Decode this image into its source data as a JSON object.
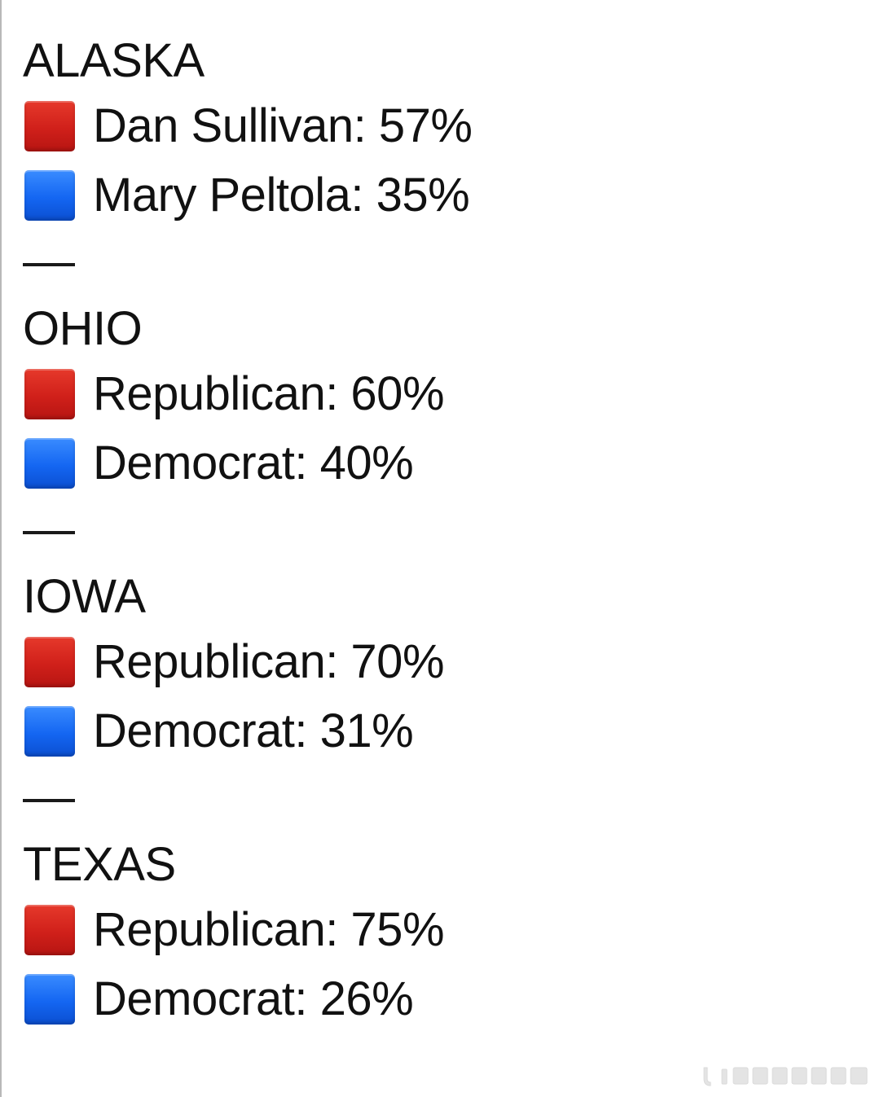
{
  "states": [
    {
      "name": "ALASKA",
      "rows": [
        {
          "color": "red",
          "color_hex": "#d0201a",
          "text": "Dan Sullivan: 57%"
        },
        {
          "color": "blue",
          "color_hex": "#1466f2",
          "text": "Mary Peltola: 35%"
        }
      ]
    },
    {
      "name": "OHIO",
      "rows": [
        {
          "color": "red",
          "color_hex": "#d0201a",
          "text": "Republican: 60%"
        },
        {
          "color": "blue",
          "color_hex": "#1466f2",
          "text": "Democrat: 40%"
        }
      ]
    },
    {
      "name": "IOWA",
      "rows": [
        {
          "color": "red",
          "color_hex": "#d0201a",
          "text": "Republican: 70%"
        },
        {
          "color": "blue",
          "color_hex": "#1466f2",
          "text": "Democrat: 31%"
        }
      ]
    },
    {
      "name": "TEXAS",
      "rows": [
        {
          "color": "red",
          "color_hex": "#d0201a",
          "text": "Republican: 75%"
        },
        {
          "color": "blue",
          "color_hex": "#1466f2",
          "text": "Democrat: 26%"
        }
      ]
    }
  ],
  "separator": "—"
}
